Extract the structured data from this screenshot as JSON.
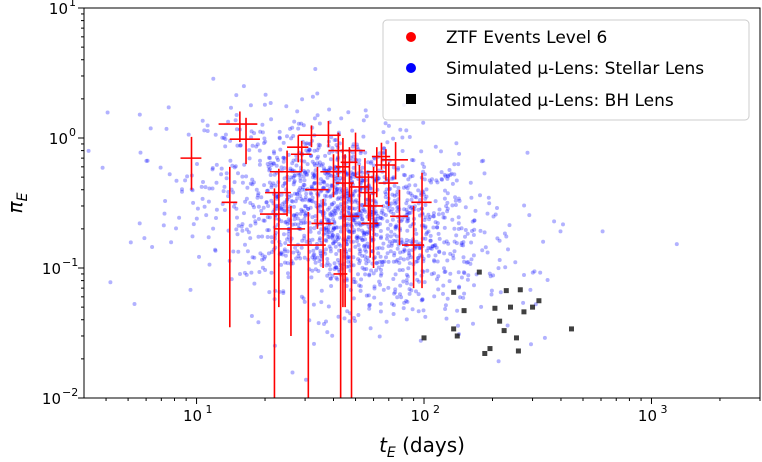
{
  "chart_data": {
    "type": "scatter",
    "title": "",
    "xlabel": "t_E (days)",
    "ylabel": "π_E",
    "xscale": "log",
    "yscale": "log",
    "xlim": [
      3.2,
      3000
    ],
    "ylim": [
      0.01,
      10
    ],
    "xticks": [
      {
        "base": "10",
        "exp": "1",
        "value": 10
      },
      {
        "base": "10",
        "exp": "2",
        "value": 100
      },
      {
        "base": "10",
        "exp": "3",
        "value": 1000
      }
    ],
    "yticks": [
      {
        "base": "10",
        "exp": "−2",
        "value": 0.01
      },
      {
        "base": "10",
        "exp": "−1",
        "value": 0.1
      },
      {
        "base": "10",
        "exp": "0",
        "value": 1
      },
      {
        "base": "10",
        "exp": "1",
        "value": 10
      }
    ],
    "legend_position": "top-right",
    "colors": {
      "ztf": "#ff0000",
      "stellar": "#0000ff",
      "bh": "#000000"
    },
    "series": [
      {
        "name": "ZTF Events Level 6",
        "marker": "errorbar",
        "points": [
          {
            "x": 9.5,
            "y": 0.7,
            "xerr": [
              1.0,
              1.0
            ],
            "yerr": [
              0.3,
              0.32
            ]
          },
          {
            "x": 14.0,
            "y": 0.32,
            "xerr": [
              1.1,
              1.1
            ],
            "yerr": [
              0.285,
              0.28
            ]
          },
          {
            "x": 15.5,
            "y": 1.28,
            "xerr": [
              3.0,
              3.0
            ],
            "yerr": [
              0.35,
              0.32
            ]
          },
          {
            "x": 16.5,
            "y": 0.98,
            "xerr": [
              2.5,
              2.5
            ],
            "yerr": [
              0.35,
              0.45
            ]
          },
          {
            "x": 22.0,
            "y": 0.26,
            "xerr": [
              3.0,
              3.0
            ],
            "yerr": [
              0.25,
              0.15
            ]
          },
          {
            "x": 23.0,
            "y": 0.38,
            "xerr": [
              3.0,
              3.0
            ],
            "yerr": [
              0.33,
              0.2
            ]
          },
          {
            "x": 25.0,
            "y": 0.55,
            "xerr": [
              4.0,
              4.0
            ],
            "yerr": [
              0.3,
              0.25
            ]
          },
          {
            "x": 26.0,
            "y": 0.2,
            "xerr": [
              4.0,
              4.0
            ],
            "yerr": [
              0.17,
              0.1
            ]
          },
          {
            "x": 28.0,
            "y": 0.85,
            "xerr": [
              3.0,
              3.0
            ],
            "yerr": [
              0.2,
              0.2
            ]
          },
          {
            "x": 29.0,
            "y": 0.75,
            "xerr": [
              3.0,
              3.0
            ],
            "yerr": [
              0.2,
              0.2
            ]
          },
          {
            "x": 31.0,
            "y": 0.15,
            "xerr": [
              6.0,
              6.0
            ],
            "yerr": [
              0.145,
              0.12
            ]
          },
          {
            "x": 32.0,
            "y": 1.05,
            "xerr": [
              4.0,
              4.0
            ],
            "yerr": [
              0.2,
              0.2
            ]
          },
          {
            "x": 34.0,
            "y": 0.4,
            "xerr": [
              4.0,
              4.0
            ],
            "yerr": [
              0.2,
              0.2
            ]
          },
          {
            "x": 36.0,
            "y": 0.22,
            "xerr": [
              4.0,
              4.0
            ],
            "yerr": [
              0.12,
              0.12
            ]
          },
          {
            "x": 38.0,
            "y": 1.05,
            "xerr": [
              5.0,
              5.0
            ],
            "yerr": [
              0.2,
              0.3
            ]
          },
          {
            "x": 40.0,
            "y": 0.55,
            "xerr": [
              5.0,
              5.0
            ],
            "yerr": [
              0.2,
              0.2
            ]
          },
          {
            "x": 42.0,
            "y": 0.8,
            "xerr": [
              4.0,
              4.0
            ],
            "yerr": [
              0.3,
              0.3
            ]
          },
          {
            "x": 43.0,
            "y": 0.09,
            "xerr": [
              3.0,
              3.0
            ],
            "yerr": [
              0.085,
              0.05
            ]
          },
          {
            "x": 44.0,
            "y": 0.6,
            "xerr": [
              3.0,
              3.0
            ],
            "yerr": [
              0.55,
              0.4
            ]
          },
          {
            "x": 45.0,
            "y": 0.45,
            "xerr": [
              4.0,
              4.0
            ],
            "yerr": [
              0.4,
              0.3
            ]
          },
          {
            "x": 47.0,
            "y": 0.65,
            "xerr": [
              4.0,
              4.0
            ],
            "yerr": [
              0.3,
              0.2
            ]
          },
          {
            "x": 48.0,
            "y": 0.25,
            "xerr": [
              4.0,
              4.0
            ],
            "yerr": [
              0.24,
              0.2
            ]
          },
          {
            "x": 50.0,
            "y": 0.8,
            "xerr": [
              5.0,
              5.0
            ],
            "yerr": [
              0.3,
              0.3
            ]
          },
          {
            "x": 52.0,
            "y": 0.42,
            "xerr": [
              5.0,
              5.0
            ],
            "yerr": [
              0.15,
              0.2
            ]
          },
          {
            "x": 55.0,
            "y": 0.5,
            "xerr": [
              5.0,
              5.0
            ],
            "yerr": [
              0.2,
              0.2
            ]
          },
          {
            "x": 57.0,
            "y": 0.38,
            "xerr": [
              5.0,
              5.0
            ],
            "yerr": [
              0.15,
              0.15
            ]
          },
          {
            "x": 58.0,
            "y": 0.22,
            "xerr": [
              5.0,
              5.0
            ],
            "yerr": [
              0.1,
              0.15
            ]
          },
          {
            "x": 60.0,
            "y": 0.3,
            "xerr": [
              6.0,
              6.0
            ],
            "yerr": [
              0.2,
              0.3
            ]
          },
          {
            "x": 62.0,
            "y": 0.55,
            "xerr": [
              6.0,
              6.0
            ],
            "yerr": [
              0.2,
              0.3
            ]
          },
          {
            "x": 65.0,
            "y": 0.72,
            "xerr": [
              6.0,
              6.0
            ],
            "yerr": [
              0.15,
              0.2
            ]
          },
          {
            "x": 68.0,
            "y": 0.62,
            "xerr": [
              7.0,
              7.0
            ],
            "yerr": [
              0.15,
              0.2
            ]
          },
          {
            "x": 70.0,
            "y": 0.45,
            "xerr": [
              7.0,
              7.0
            ],
            "yerr": [
              0.15,
              0.2
            ]
          },
          {
            "x": 75.0,
            "y": 0.68,
            "xerr": [
              10.0,
              10.0
            ],
            "yerr": [
              0.2,
              0.25
            ]
          },
          {
            "x": 78.0,
            "y": 0.25,
            "xerr": [
              7.0,
              7.0
            ],
            "yerr": [
              0.1,
              0.15
            ]
          },
          {
            "x": 90.0,
            "y": 0.15,
            "xerr": [
              10.0,
              10.0
            ],
            "yerr": [
              0.08,
              0.15
            ]
          },
          {
            "x": 98.0,
            "y": 0.32,
            "xerr": [
              10.0,
              10.0
            ],
            "yerr": [
              0.25,
              0.22
            ]
          }
        ]
      },
      {
        "name": "Simulated μ-Lens: Stellar Lens",
        "marker": "dot",
        "n_points": 1600,
        "x_center": 45,
        "y_center": 0.25
      },
      {
        "name": "Simulated μ-Lens: BH Lens",
        "marker": "square",
        "points": [
          {
            "x": 100,
            "y": 0.029
          },
          {
            "x": 135,
            "y": 0.065
          },
          {
            "x": 135,
            "y": 0.034
          },
          {
            "x": 140,
            "y": 0.03
          },
          {
            "x": 150,
            "y": 0.047
          },
          {
            "x": 175,
            "y": 0.093
          },
          {
            "x": 185,
            "y": 0.022
          },
          {
            "x": 195,
            "y": 0.024
          },
          {
            "x": 205,
            "y": 0.049
          },
          {
            "x": 215,
            "y": 0.039
          },
          {
            "x": 225,
            "y": 0.033
          },
          {
            "x": 230,
            "y": 0.067
          },
          {
            "x": 240,
            "y": 0.05
          },
          {
            "x": 255,
            "y": 0.029
          },
          {
            "x": 260,
            "y": 0.023
          },
          {
            "x": 265,
            "y": 0.068
          },
          {
            "x": 275,
            "y": 0.046
          },
          {
            "x": 300,
            "y": 0.05
          },
          {
            "x": 320,
            "y": 0.056
          },
          {
            "x": 445,
            "y": 0.034
          }
        ]
      }
    ]
  }
}
